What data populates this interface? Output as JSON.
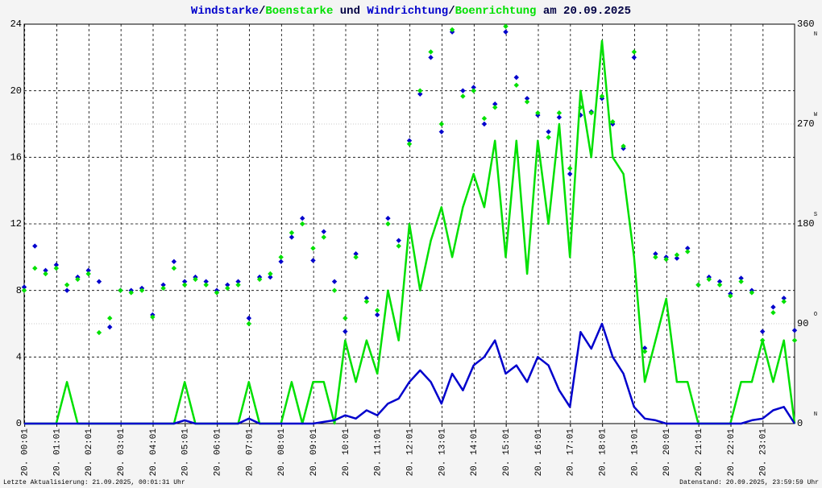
{
  "chart_data": {
    "type": "wind",
    "title_separators": [
      "/",
      " und ",
      "/",
      " am 20.09.2025"
    ],
    "footer_left": "Letzte Aktualisierung: 21.09.2025, 00:01:31 Uhr",
    "footer_right": "Datenstand: 20.09.2025, 23:59:59 Uhr",
    "x": [
      0,
      20,
      40,
      60,
      80,
      100,
      120,
      140,
      160,
      180,
      200,
      220,
      240,
      260,
      280,
      300,
      320,
      340,
      360,
      380,
      400,
      420,
      440,
      460,
      480,
      500,
      520,
      540,
      560,
      580,
      600,
      620,
      640,
      660,
      680,
      700,
      720,
      740,
      760,
      780,
      800,
      820,
      840,
      860,
      880,
      900,
      920,
      940,
      960,
      980,
      1000,
      1020,
      1040,
      1060,
      1080,
      1100,
      1120,
      1140,
      1160,
      1180,
      1200,
      1220,
      1240,
      1260,
      1280,
      1300,
      1320,
      1340,
      1360,
      1380,
      1400,
      1420,
      1440
    ],
    "xlim": [
      0,
      1440
    ],
    "xticks": [
      {
        "value": 1,
        "label": "20. 00:01"
      },
      {
        "value": 61,
        "label": "20. 01:01"
      },
      {
        "value": 121,
        "label": "20. 02:01"
      },
      {
        "value": 181,
        "label": "20. 03:01"
      },
      {
        "value": 241,
        "label": "20. 04:01"
      },
      {
        "value": 301,
        "label": "20. 05:01"
      },
      {
        "value": 361,
        "label": "20. 06:01"
      },
      {
        "value": 421,
        "label": "20. 07:01"
      },
      {
        "value": 481,
        "label": "20. 08:01"
      },
      {
        "value": 541,
        "label": "20. 09:01"
      },
      {
        "value": 601,
        "label": "20. 10:01"
      },
      {
        "value": 661,
        "label": "20. 11:01"
      },
      {
        "value": 721,
        "label": "20. 12:01"
      },
      {
        "value": 781,
        "label": "20. 13:01"
      },
      {
        "value": 841,
        "label": "20. 14:01"
      },
      {
        "value": 901,
        "label": "20. 15:01"
      },
      {
        "value": 961,
        "label": "20. 16:01"
      },
      {
        "value": 1021,
        "label": "20. 17:01"
      },
      {
        "value": 1081,
        "label": "20. 18:01"
      },
      {
        "value": 1141,
        "label": "20. 19:01"
      },
      {
        "value": 1201,
        "label": "20. 20:01"
      },
      {
        "value": 1261,
        "label": "20. 21:01"
      },
      {
        "value": 1321,
        "label": "20. 22:01"
      },
      {
        "value": 1381,
        "label": "20. 23:01"
      }
    ],
    "ylim": [
      0,
      24
    ],
    "yticks": [
      0,
      4,
      8,
      12,
      16,
      20,
      24
    ],
    "y2lim": [
      0,
      360
    ],
    "y2ticks": [
      0,
      90,
      180,
      270,
      360
    ],
    "y2tick_directions": [
      "N",
      "O",
      "S",
      "W",
      "N"
    ],
    "grid": true,
    "series": [
      {
        "name": "Windstarke",
        "color": "#0000cc",
        "style": "line",
        "values": [
          0,
          0,
          0,
          0,
          0,
          0,
          0,
          0,
          0,
          0,
          0,
          0,
          0,
          0,
          0,
          0.2,
          0,
          0,
          0,
          0,
          0,
          0.3,
          0,
          0,
          0,
          0,
          0,
          0,
          0.1,
          0.2,
          0.5,
          0.3,
          0.8,
          0.5,
          1.2,
          1.5,
          2.5,
          3.2,
          2.5,
          1.2,
          3.0,
          2.0,
          3.5,
          4.0,
          5.0,
          3.0,
          3.5,
          2.5,
          4.0,
          3.5,
          2.0,
          1.0,
          5.5,
          4.5,
          6.0,
          4.0,
          3.0,
          1.0,
          0.3,
          0.2,
          0,
          0,
          0,
          0,
          0,
          0,
          0,
          0,
          0.2,
          0.3,
          0.8,
          1.0,
          0
        ]
      },
      {
        "name": "Boenstarke",
        "color": "#00e000",
        "style": "line",
        "values": [
          0,
          0,
          0,
          0,
          2.5,
          0,
          0,
          0,
          0,
          0,
          0,
          0,
          0,
          0,
          0,
          2.5,
          0,
          0,
          0,
          0,
          0,
          2.5,
          0,
          0,
          0,
          2.5,
          0,
          2.5,
          2.5,
          0,
          5,
          2.5,
          5,
          3,
          8,
          5,
          12,
          8,
          11,
          13,
          10,
          13,
          15,
          13,
          17,
          10,
          17,
          9,
          17,
          12,
          18,
          10,
          20,
          16,
          23,
          16,
          15,
          10,
          2.5,
          5,
          7.5,
          2.5,
          2.5,
          0,
          0,
          0,
          0,
          2.5,
          2.5,
          5,
          2.5,
          5,
          0
        ]
      },
      {
        "name": "Windrichtung",
        "color": "#0000cc",
        "style": "points",
        "axis": "y2",
        "values": [
          123,
          160,
          138,
          143,
          120,
          132,
          138,
          128,
          87,
          120,
          120,
          122,
          98,
          125,
          146,
          128,
          132,
          128,
          120,
          125,
          128,
          95,
          132,
          132,
          146,
          168,
          185,
          147,
          173,
          128,
          83,
          153,
          113,
          98,
          185,
          165,
          255,
          297,
          330,
          263,
          353,
          300,
          303,
          270,
          288,
          353,
          312,
          293,
          278,
          263,
          276,
          225,
          278,
          281,
          293,
          270,
          248,
          330,
          68,
          153,
          150,
          149,
          158,
          125,
          132,
          128,
          117,
          131,
          120,
          83,
          105,
          113,
          84
        ]
      },
      {
        "name": "Boenrichtung",
        "color": "#00e000",
        "style": "points",
        "axis": "y2",
        "values": [
          120,
          140,
          135,
          140,
          125,
          130,
          135,
          82,
          95,
          120,
          118,
          120,
          96,
          122,
          140,
          125,
          130,
          125,
          118,
          122,
          125,
          90,
          130,
          135,
          150,
          172,
          180,
          158,
          168,
          120,
          95,
          150,
          110,
          102,
          180,
          160,
          252,
          300,
          335,
          270,
          355,
          295,
          300,
          275,
          285,
          358,
          305,
          290,
          280,
          258,
          280,
          230,
          285,
          280,
          295,
          272,
          250,
          335,
          65,
          150,
          148,
          152,
          155,
          125,
          130,
          125,
          115,
          128,
          118,
          75,
          100,
          110,
          75
        ]
      }
    ]
  }
}
